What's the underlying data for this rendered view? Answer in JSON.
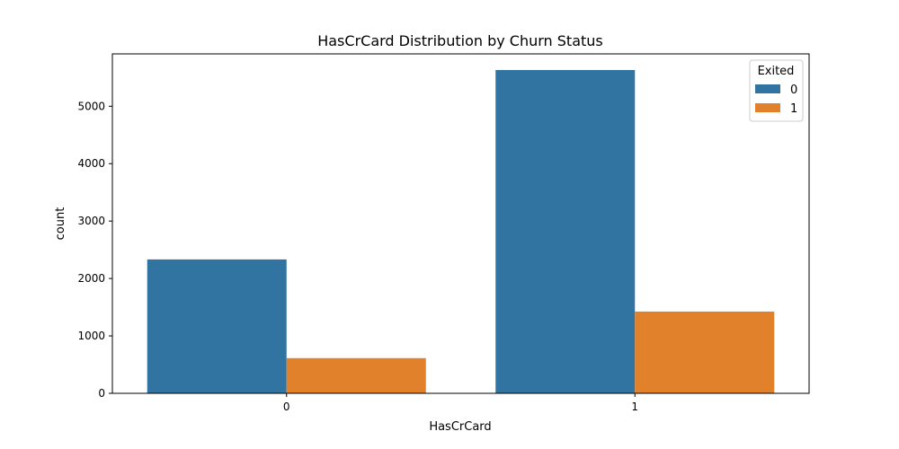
{
  "chart_data": {
    "type": "bar",
    "title": "HasCrCard Distribution by Churn Status",
    "xlabel": "HasCrCard",
    "ylabel": "count",
    "categories": [
      "0",
      "1"
    ],
    "series": [
      {
        "name": "0",
        "values": [
          2332,
          5631
        ],
        "color": "#3274a1"
      },
      {
        "name": "1",
        "values": [
          613,
          1424
        ],
        "color": "#e1812c"
      }
    ],
    "ylim": [
      0,
      5912
    ],
    "yticks": [
      0,
      1000,
      2000,
      3000,
      4000,
      5000
    ],
    "grid": false,
    "legend": {
      "title": "Exited",
      "placement": "top-right"
    }
  }
}
